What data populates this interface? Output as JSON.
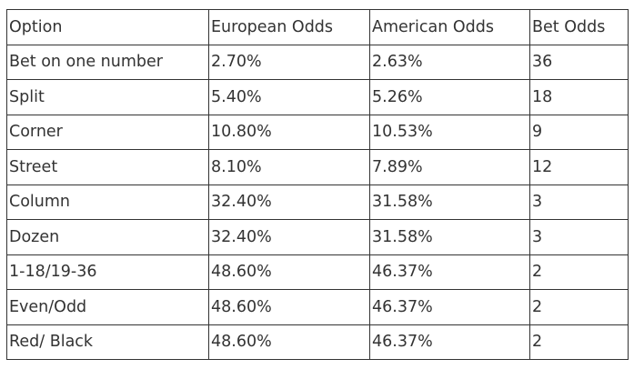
{
  "table": {
    "headers": [
      "Option",
      "European Odds",
      "American Odds",
      "Bet Odds"
    ],
    "rows": [
      [
        "Bet on one number",
        "2.70%",
        "2.63%",
        "36"
      ],
      [
        "Split",
        "5.40%",
        "5.26%",
        "18"
      ],
      [
        "Corner",
        "10.80%",
        "10.53%",
        "9"
      ],
      [
        "Street",
        "8.10%",
        "7.89%",
        "12"
      ],
      [
        "Column",
        "32.40%",
        "31.58%",
        "3"
      ],
      [
        "Dozen",
        "32.40%",
        "31.58%",
        "3"
      ],
      [
        "1-18/19-36",
        "48.60%",
        "46.37%",
        "2"
      ],
      [
        "Even/Odd",
        "48.60%",
        "46.37%",
        "2"
      ],
      [
        "Red/ Black",
        "48.60%",
        "46.37%",
        "2"
      ]
    ]
  }
}
